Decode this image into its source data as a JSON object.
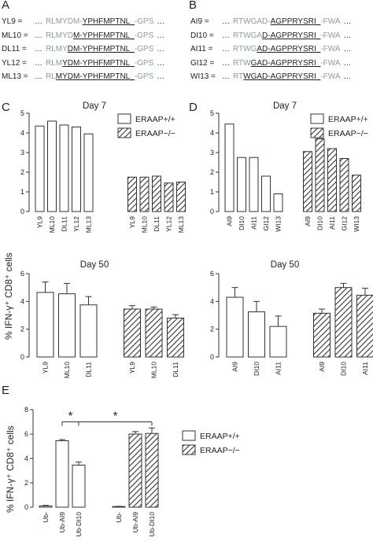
{
  "panels": {
    "A": "A",
    "B": "B",
    "C": "C",
    "D": "D",
    "E": "E"
  },
  "sequences_A": [
    {
      "id": "YL9 =",
      "dots": "…",
      "flank_left": "RLMYDM-",
      "core": "YPHFMPTNL",
      "gap": "_",
      "flank_right": "-GPS",
      "dots_end": "…"
    },
    {
      "id": "ML10 =",
      "dots": "…",
      "flank_left": "RLMYD",
      "core": "M-YPHFMPTNL",
      "gap": "_",
      "flank_right": "-GPS",
      "dots_end": "…"
    },
    {
      "id": "DL11 =",
      "dots": "…",
      "flank_left": "RLMY",
      "core": "DM-YPHFMPTNL",
      "gap": "_",
      "flank_right": "-GPS",
      "dots_end": "…"
    },
    {
      "id": "YL12 =",
      "dots": "…",
      "flank_left": "RLM",
      "core": "YDM-YPHFMPTNL",
      "gap": "_",
      "flank_right": "-GPS",
      "dots_end": "…"
    },
    {
      "id": "ML13 =",
      "dots": "…",
      "flank_left": "RL",
      "core": "MYDM-YPHFMPTNL",
      "gap": "_",
      "flank_right": "-GPS",
      "dots_end": "…"
    }
  ],
  "sequences_B": [
    {
      "id": "AI9 =",
      "dots": "…",
      "flank_left": "RTWGAD-",
      "core": "AGPPRYSRI",
      "gap": "_",
      "flank_right": "-FWA",
      "dots_end": "…"
    },
    {
      "id": "DI10 =",
      "dots": "…",
      "flank_left": "RTWGA",
      "core": "D-AGPPRYSRI",
      "gap": "_",
      "flank_right": "-FWA",
      "dots_end": "…"
    },
    {
      "id": "AI11 =",
      "dots": "…",
      "flank_left": "RTWG",
      "core": "AD-AGPPRYSRI",
      "gap": "_",
      "flank_right": "-FWA",
      "dots_end": "…"
    },
    {
      "id": "GI12 =",
      "dots": "…",
      "flank_left": "RTW",
      "core": "GAD-AGPPRYSRI",
      "gap": "_",
      "flank_right": "-FWA",
      "dots_end": "…"
    },
    {
      "id": "WI13 =",
      "dots": "…",
      "flank_left": "RT",
      "core": "WGAD-AGPPRYSRI",
      "gap": "_",
      "flank_right": "-FWA",
      "dots_end": "…"
    }
  ],
  "shared_ylabel": "% IFN-γ⁺ CD8⁺ cells",
  "legend": {
    "wt": "ERAAP+/+",
    "ko": "ERAAP−/−"
  },
  "colors": {
    "axis": "#333333",
    "bar_fill": "#ffffff",
    "hatch": "#333333",
    "grey_flank": "#8a9aa8"
  },
  "chart_data": [
    {
      "id": "C_day7",
      "type": "bar",
      "title": "Day 7",
      "ylim": [
        0,
        5
      ],
      "yticks": [
        0,
        1,
        2,
        3,
        4,
        5
      ],
      "categories": [
        "YL9",
        "ML10",
        "DL11",
        "YL12",
        "ML13"
      ],
      "series": [
        {
          "name": "ERAAP+/+",
          "pattern": "open",
          "values": [
            4.35,
            4.6,
            4.4,
            4.3,
            3.95
          ]
        },
        {
          "name": "ERAAP−/−",
          "pattern": "hatched",
          "values": [
            1.75,
            1.75,
            1.8,
            1.45,
            1.5
          ]
        }
      ],
      "legend": "top-right"
    },
    {
      "id": "C_day50",
      "type": "bar",
      "title": "Day 50",
      "ylim": [
        0,
        6
      ],
      "yticks": [
        0,
        2,
        4,
        6
      ],
      "categories": [
        "YL9",
        "ML10",
        "DL11"
      ],
      "series": [
        {
          "name": "ERAAP+/+",
          "pattern": "open",
          "values": [
            4.65,
            4.55,
            3.75
          ],
          "errors": [
            0.75,
            0.75,
            0.6
          ]
        },
        {
          "name": "ERAAP−/−",
          "pattern": "hatched",
          "values": [
            3.45,
            3.45,
            2.8
          ],
          "errors": [
            0.25,
            0.15,
            0.25
          ]
        }
      ]
    },
    {
      "id": "D_day7",
      "type": "bar",
      "title": "Day 7",
      "ylim": [
        0,
        5
      ],
      "yticks": [
        0,
        1,
        2,
        3,
        4,
        5
      ],
      "categories": [
        "AI9",
        "DI10",
        "AI11",
        "GI12",
        "WI13"
      ],
      "series": [
        {
          "name": "ERAAP+/+",
          "pattern": "open",
          "values": [
            4.45,
            2.75,
            2.75,
            1.8,
            0.9
          ]
        },
        {
          "name": "ERAAP−/−",
          "pattern": "hatched",
          "values": [
            3.05,
            3.7,
            3.2,
            2.7,
            1.85
          ]
        }
      ],
      "legend": "top-right"
    },
    {
      "id": "D_day50",
      "type": "bar",
      "title": "Day 50",
      "ylim": [
        0,
        6
      ],
      "yticks": [
        0,
        2,
        4,
        6
      ],
      "categories": [
        "AI9",
        "DI10",
        "AI11"
      ],
      "series": [
        {
          "name": "ERAAP+/+",
          "pattern": "open",
          "values": [
            4.3,
            3.25,
            2.2
          ],
          "errors": [
            0.7,
            0.75,
            0.75
          ]
        },
        {
          "name": "ERAAP−/−",
          "pattern": "hatched",
          "values": [
            3.15,
            5.0,
            4.45
          ],
          "errors": [
            0.3,
            0.3,
            0.5
          ]
        }
      ]
    },
    {
      "id": "E",
      "type": "bar",
      "ylim": [
        0,
        8
      ],
      "yticks": [
        0,
        2,
        4,
        6,
        8
      ],
      "categories": [
        "Ub-",
        "Ub-AI9",
        "Ub-DI10"
      ],
      "series": [
        {
          "name": "ERAAP+/+",
          "pattern": "open",
          "values": [
            0.1,
            5.45,
            3.45
          ],
          "errors": [
            0.05,
            0.1,
            0.25
          ]
        },
        {
          "name": "ERAAP−/−",
          "pattern": "hatched",
          "values": [
            0.05,
            6.0,
            6.05
          ],
          "errors": [
            0.02,
            0.2,
            0.45
          ]
        }
      ],
      "annotations": [
        "*",
        "*"
      ],
      "legend": "right"
    }
  ]
}
